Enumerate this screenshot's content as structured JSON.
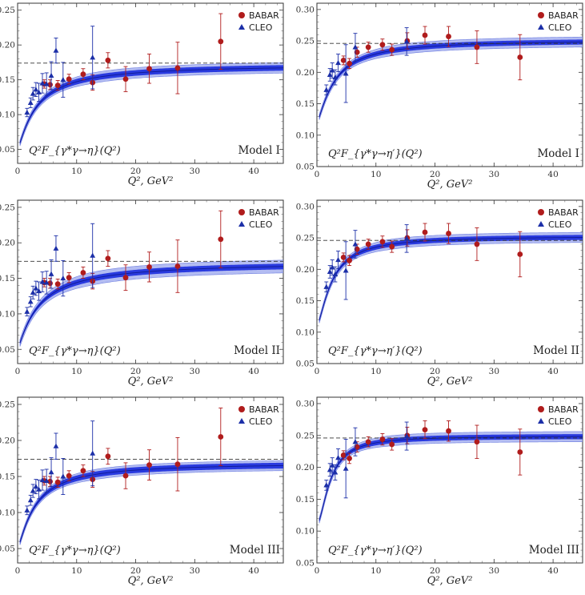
{
  "legend": {
    "babar": "BABAR",
    "cleo": "CLEO"
  },
  "colors": {
    "babar": "#b01c1c",
    "cleo": "#1c2fa8",
    "band_dark": "#2233dd",
    "band_light": "#9aa6ee",
    "central": "#111c9a",
    "dashed": "#333333"
  },
  "x_axis": {
    "label": "Q², GeV²",
    "ticks": [
      "0",
      "10",
      "20",
      "30",
      "40"
    ],
    "range": [
      0,
      45
    ]
  },
  "chart_data": [
    {
      "type": "scatter",
      "panel": "eta-model-1",
      "label": "Q²F_{γ*γ→η}(Q²)",
      "model": "Model I",
      "xlabel": "Q², GeV²",
      "xlim": [
        0,
        45
      ],
      "ylim": [
        0.03,
        0.26
      ],
      "yticks": [
        "0.05",
        "0.10",
        "0.15",
        "0.20",
        "0.25"
      ],
      "asymptote": 0.174,
      "curve": {
        "asymptote": 0.172,
        "q0": 3.2,
        "power": 1.2,
        "y0": 0.05,
        "dark_width": 0.004,
        "light_width": 0.0075
      },
      "series": [
        {
          "name": "BABAR",
          "points": [
            [
              4.5,
              0.144,
              0.006
            ],
            [
              5.5,
              0.143,
              0.007
            ],
            [
              6.8,
              0.142,
              0.007
            ],
            [
              8.7,
              0.151,
              0.007
            ],
            [
              11.1,
              0.158,
              0.008
            ],
            [
              12.7,
              0.146,
              0.011
            ],
            [
              15.3,
              0.178,
              0.011
            ],
            [
              18.3,
              0.151,
              0.018
            ],
            [
              22.3,
              0.166,
              0.021
            ],
            [
              27.1,
              0.167,
              0.037
            ],
            [
              34.4,
              0.205,
              0.04
            ]
          ]
        },
        {
          "name": "CLEO",
          "points": [
            [
              1.6,
              0.103,
              0.006
            ],
            [
              2.2,
              0.117,
              0.007
            ],
            [
              2.6,
              0.13,
              0.009
            ],
            [
              3.1,
              0.136,
              0.01
            ],
            [
              3.6,
              0.132,
              0.013
            ],
            [
              4.2,
              0.145,
              0.014
            ],
            [
              4.9,
              0.144,
              0.016
            ],
            [
              5.7,
              0.156,
              0.02
            ],
            [
              6.5,
              0.192,
              0.018
            ],
            [
              7.7,
              0.15,
              0.025
            ],
            [
              12.7,
              0.182,
              0.045
            ]
          ]
        }
      ]
    },
    {
      "type": "scatter",
      "panel": "etaprime-model-1",
      "label": "Q²F_{γ*γ→η′}(Q²)",
      "model": "Model I",
      "xlabel": "Q², GeV²",
      "xlim": [
        0,
        45
      ],
      "ylim": [
        0.05,
        0.31
      ],
      "yticks": [
        "0.05",
        "0.10",
        "0.15",
        "0.20",
        "0.25",
        "0.30"
      ],
      "asymptote": 0.246,
      "curve": {
        "asymptote": 0.252,
        "q0": 3.0,
        "power": 1.3,
        "y0": 0.12,
        "dark_width": 0.004,
        "light_width": 0.008
      },
      "series": [
        {
          "name": "BABAR",
          "points": [
            [
              4.5,
              0.219,
              0.007
            ],
            [
              5.5,
              0.214,
              0.008
            ],
            [
              6.8,
              0.232,
              0.008
            ],
            [
              8.7,
              0.24,
              0.008
            ],
            [
              11.1,
              0.244,
              0.009
            ],
            [
              12.7,
              0.236,
              0.009
            ],
            [
              15.3,
              0.25,
              0.013
            ],
            [
              18.3,
              0.259,
              0.014
            ],
            [
              22.3,
              0.257,
              0.016
            ],
            [
              27.1,
              0.24,
              0.026
            ],
            [
              34.4,
              0.224,
              0.036
            ]
          ]
        },
        {
          "name": "CLEO",
          "points": [
            [
              1.6,
              0.172,
              0.008
            ],
            [
              2.2,
              0.196,
              0.01
            ],
            [
              2.6,
              0.203,
              0.012
            ],
            [
              3.1,
              0.192,
              0.012
            ],
            [
              3.6,
              0.215,
              0.014
            ],
            [
              4.9,
              0.198,
              0.046
            ],
            [
              6.5,
              0.24,
              0.022
            ],
            [
              15.2,
              0.249,
              0.022
            ]
          ]
        }
      ]
    },
    {
      "type": "scatter",
      "panel": "eta-model-2",
      "label": "Q²F_{γ*γ→η}(Q²)",
      "model": "Model II",
      "xlabel": "Q², GeV²",
      "xlim": [
        0,
        45
      ],
      "ylim": [
        0.03,
        0.26
      ],
      "yticks": [
        "0.05",
        "0.10",
        "0.15",
        "0.20",
        "0.25"
      ],
      "asymptote": 0.174,
      "curve": {
        "asymptote": 0.173,
        "q0": 3.6,
        "power": 1.15,
        "y0": 0.05,
        "dark_width": 0.004,
        "light_width": 0.009
      },
      "series": [
        {
          "name": "BABAR",
          "points": [
            [
              4.5,
              0.144,
              0.006
            ],
            [
              5.5,
              0.143,
              0.007
            ],
            [
              6.8,
              0.142,
              0.007
            ],
            [
              8.7,
              0.151,
              0.007
            ],
            [
              11.1,
              0.158,
              0.008
            ],
            [
              12.7,
              0.146,
              0.011
            ],
            [
              15.3,
              0.178,
              0.011
            ],
            [
              18.3,
              0.151,
              0.018
            ],
            [
              22.3,
              0.166,
              0.021
            ],
            [
              27.1,
              0.167,
              0.037
            ],
            [
              34.4,
              0.205,
              0.04
            ]
          ]
        },
        {
          "name": "CLEO",
          "points": [
            [
              1.6,
              0.103,
              0.006
            ],
            [
              2.2,
              0.117,
              0.007
            ],
            [
              2.6,
              0.13,
              0.009
            ],
            [
              3.1,
              0.136,
              0.01
            ],
            [
              3.6,
              0.132,
              0.013
            ],
            [
              4.2,
              0.145,
              0.014
            ],
            [
              4.9,
              0.144,
              0.016
            ],
            [
              5.7,
              0.156,
              0.02
            ],
            [
              6.5,
              0.192,
              0.018
            ],
            [
              7.7,
              0.15,
              0.025
            ],
            [
              12.7,
              0.182,
              0.045
            ]
          ]
        }
      ]
    },
    {
      "type": "scatter",
      "panel": "etaprime-model-2",
      "label": "Q²F_{γ*γ→η′}(Q²)",
      "model": "Model II",
      "xlabel": "Q², GeV²",
      "xlim": [
        0,
        45
      ],
      "ylim": [
        0.05,
        0.31
      ],
      "yticks": [
        "0.05",
        "0.10",
        "0.15",
        "0.20",
        "0.25",
        "0.30"
      ],
      "asymptote": 0.246,
      "curve": {
        "asymptote": 0.253,
        "q0": 2.6,
        "power": 1.45,
        "y0": 0.11,
        "dark_width": 0.004,
        "light_width": 0.008
      },
      "series": [
        {
          "name": "BABAR",
          "points": [
            [
              4.5,
              0.219,
              0.007
            ],
            [
              5.5,
              0.214,
              0.008
            ],
            [
              6.8,
              0.232,
              0.008
            ],
            [
              8.7,
              0.24,
              0.008
            ],
            [
              11.1,
              0.244,
              0.009
            ],
            [
              12.7,
              0.236,
              0.009
            ],
            [
              15.3,
              0.25,
              0.013
            ],
            [
              18.3,
              0.259,
              0.014
            ],
            [
              22.3,
              0.257,
              0.016
            ],
            [
              27.1,
              0.24,
              0.026
            ],
            [
              34.4,
              0.224,
              0.036
            ]
          ]
        },
        {
          "name": "CLEO",
          "points": [
            [
              1.6,
              0.172,
              0.008
            ],
            [
              2.2,
              0.196,
              0.01
            ],
            [
              2.6,
              0.203,
              0.012
            ],
            [
              3.1,
              0.192,
              0.012
            ],
            [
              3.6,
              0.215,
              0.014
            ],
            [
              4.9,
              0.198,
              0.046
            ],
            [
              6.5,
              0.24,
              0.022
            ],
            [
              15.2,
              0.249,
              0.022
            ]
          ]
        }
      ]
    },
    {
      "type": "scatter",
      "panel": "eta-model-3",
      "label": "Q²F_{γ*γ→η}(Q²)",
      "model": "Model III",
      "xlabel": "Q², GeV²",
      "xlim": [
        0,
        45
      ],
      "ylim": [
        0.03,
        0.26
      ],
      "yticks": [
        "0.05",
        "0.10",
        "0.15",
        "0.20",
        "0.25"
      ],
      "asymptote": 0.174,
      "curve": {
        "asymptote": 0.169,
        "q0": 3.0,
        "power": 1.25,
        "y0": 0.05,
        "dark_width": 0.004,
        "light_width": 0.007
      },
      "series": [
        {
          "name": "BABAR",
          "points": [
            [
              4.5,
              0.144,
              0.006
            ],
            [
              5.5,
              0.143,
              0.007
            ],
            [
              6.8,
              0.142,
              0.007
            ],
            [
              8.7,
              0.151,
              0.007
            ],
            [
              11.1,
              0.158,
              0.008
            ],
            [
              12.7,
              0.146,
              0.011
            ],
            [
              15.3,
              0.178,
              0.011
            ],
            [
              18.3,
              0.151,
              0.018
            ],
            [
              22.3,
              0.166,
              0.021
            ],
            [
              27.1,
              0.167,
              0.037
            ],
            [
              34.4,
              0.205,
              0.04
            ]
          ]
        },
        {
          "name": "CLEO",
          "points": [
            [
              1.6,
              0.103,
              0.006
            ],
            [
              2.2,
              0.117,
              0.007
            ],
            [
              2.6,
              0.13,
              0.009
            ],
            [
              3.1,
              0.136,
              0.01
            ],
            [
              3.6,
              0.132,
              0.013
            ],
            [
              4.2,
              0.145,
              0.014
            ],
            [
              4.9,
              0.144,
              0.016
            ],
            [
              5.7,
              0.156,
              0.02
            ],
            [
              6.5,
              0.192,
              0.018
            ],
            [
              7.7,
              0.15,
              0.025
            ],
            [
              12.7,
              0.182,
              0.045
            ]
          ]
        }
      ]
    },
    {
      "type": "scatter",
      "panel": "etaprime-model-3",
      "label": "Q²F_{γ*γ→η′}(Q²)",
      "model": "Model III",
      "xlabel": "Q², GeV²",
      "xlim": [
        0,
        45
      ],
      "ylim": [
        0.05,
        0.31
      ],
      "yticks": [
        "0.05",
        "0.10",
        "0.15",
        "0.20",
        "0.25",
        "0.30"
      ],
      "asymptote": 0.246,
      "curve": {
        "asymptote": 0.249,
        "q0": 2.3,
        "power": 1.7,
        "y0": 0.11,
        "dark_width": 0.004,
        "light_width": 0.008
      },
      "series": [
        {
          "name": "BABAR",
          "points": [
            [
              4.5,
              0.219,
              0.007
            ],
            [
              5.5,
              0.214,
              0.008
            ],
            [
              6.8,
              0.232,
              0.008
            ],
            [
              8.7,
              0.24,
              0.008
            ],
            [
              11.1,
              0.244,
              0.009
            ],
            [
              12.7,
              0.236,
              0.009
            ],
            [
              15.3,
              0.25,
              0.013
            ],
            [
              18.3,
              0.259,
              0.014
            ],
            [
              22.3,
              0.257,
              0.016
            ],
            [
              27.1,
              0.24,
              0.026
            ],
            [
              34.4,
              0.224,
              0.036
            ]
          ]
        },
        {
          "name": "CLEO",
          "points": [
            [
              1.6,
              0.172,
              0.008
            ],
            [
              2.2,
              0.196,
              0.01
            ],
            [
              2.6,
              0.203,
              0.012
            ],
            [
              3.1,
              0.192,
              0.012
            ],
            [
              3.6,
              0.215,
              0.014
            ],
            [
              4.9,
              0.198,
              0.046
            ],
            [
              6.5,
              0.24,
              0.022
            ],
            [
              15.2,
              0.249,
              0.022
            ]
          ]
        }
      ]
    }
  ]
}
